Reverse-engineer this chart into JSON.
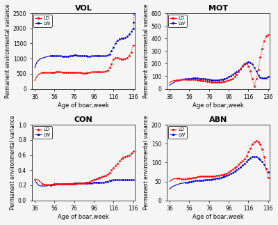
{
  "subplots": [
    {
      "title": "VOL",
      "ylabel": "Permanent environmental variance",
      "xlabel": "Age of boar,week",
      "xlim": [
        33,
        138
      ],
      "ylim": [
        0,
        2500
      ],
      "yticks": [
        0,
        500,
        1000,
        1500,
        2000,
        2500
      ],
      "xticks": [
        36,
        56,
        76,
        96,
        116,
        136
      ],
      "LD_x": [
        36,
        38,
        40,
        42,
        44,
        46,
        48,
        50,
        52,
        54,
        56,
        58,
        60,
        62,
        64,
        66,
        68,
        70,
        72,
        74,
        76,
        78,
        80,
        82,
        84,
        86,
        88,
        90,
        92,
        94,
        96,
        98,
        100,
        102,
        104,
        106,
        108,
        110,
        112,
        114,
        116,
        118,
        120,
        122,
        124,
        126,
        128,
        130,
        132,
        134,
        136
      ],
      "LD_y": [
        280,
        400,
        480,
        520,
        540,
        545,
        540,
        535,
        540,
        545,
        550,
        555,
        558,
        555,
        550,
        545,
        540,
        538,
        540,
        542,
        540,
        538,
        535,
        533,
        530,
        528,
        530,
        535,
        545,
        555,
        560,
        565,
        560,
        555,
        558,
        565,
        580,
        620,
        700,
        820,
        970,
        1020,
        1030,
        1000,
        970,
        980,
        1000,
        1020,
        1100,
        1200,
        1450
      ],
      "LW_x": [
        36,
        38,
        40,
        42,
        44,
        46,
        48,
        50,
        52,
        54,
        56,
        58,
        60,
        62,
        64,
        66,
        68,
        70,
        72,
        74,
        76,
        78,
        80,
        82,
        84,
        86,
        88,
        90,
        92,
        94,
        96,
        98,
        100,
        102,
        104,
        106,
        108,
        110,
        112,
        114,
        116,
        118,
        120,
        122,
        124,
        126,
        128,
        130,
        132,
        134,
        136,
        136.5,
        137
      ],
      "LW_y": [
        700,
        870,
        950,
        1000,
        1020,
        1040,
        1060,
        1080,
        1090,
        1100,
        1100,
        1095,
        1090,
        1085,
        1082,
        1080,
        1080,
        1082,
        1090,
        1100,
        1110,
        1110,
        1105,
        1100,
        1095,
        1090,
        1085,
        1082,
        1080,
        1085,
        1090,
        1100,
        1105,
        1100,
        1095,
        1090,
        1095,
        1110,
        1150,
        1250,
        1380,
        1500,
        1600,
        1650,
        1680,
        1680,
        1700,
        1750,
        1800,
        1900,
        2000,
        2200,
        2500
      ],
      "LD_dotted_start": 44,
      "LW_dotted_start": 51
    },
    {
      "title": "MOT",
      "ylabel": "Permanent environmental variance",
      "xlabel": "Age of boar,week",
      "xlim": [
        33,
        138
      ],
      "ylim": [
        0,
        600
      ],
      "yticks": [
        0,
        100,
        200,
        300,
        400,
        500,
        600
      ],
      "xticks": [
        36,
        56,
        76,
        96,
        116,
        136
      ],
      "LD_x": [
        36,
        38,
        40,
        42,
        44,
        46,
        48,
        50,
        52,
        54,
        56,
        58,
        60,
        62,
        64,
        66,
        68,
        70,
        72,
        74,
        76,
        78,
        80,
        82,
        84,
        86,
        88,
        90,
        92,
        94,
        96,
        98,
        100,
        102,
        104,
        106,
        108,
        110,
        112,
        114,
        116,
        118,
        120,
        122,
        124,
        126,
        128,
        130,
        132,
        134,
        136
      ],
      "LD_y": [
        50,
        60,
        65,
        68,
        70,
        72,
        73,
        74,
        75,
        76,
        77,
        76,
        75,
        73,
        70,
        68,
        65,
        63,
        62,
        60,
        58,
        55,
        52,
        50,
        50,
        52,
        55,
        58,
        60,
        63,
        67,
        75,
        82,
        95,
        115,
        135,
        160,
        185,
        200,
        200,
        180,
        140,
        80,
        20,
        80,
        150,
        250,
        320,
        380,
        420,
        430
      ],
      "LW_x": [
        36,
        38,
        40,
        42,
        44,
        46,
        48,
        50,
        52,
        54,
        56,
        58,
        60,
        62,
        64,
        66,
        68,
        70,
        72,
        74,
        76,
        78,
        80,
        82,
        84,
        86,
        88,
        90,
        92,
        94,
        96,
        98,
        100,
        102,
        104,
        106,
        108,
        110,
        112,
        114,
        116,
        118,
        120,
        122,
        124,
        126,
        128,
        130,
        132,
        134,
        136
      ],
      "LW_y": [
        30,
        40,
        50,
        58,
        63,
        68,
        72,
        75,
        78,
        80,
        82,
        83,
        85,
        85,
        84,
        83,
        82,
        80,
        78,
        76,
        74,
        72,
        70,
        68,
        68,
        70,
        73,
        77,
        82,
        88,
        95,
        105,
        115,
        125,
        135,
        145,
        160,
        178,
        195,
        205,
        215,
        210,
        195,
        170,
        140,
        110,
        90,
        85,
        85,
        88,
        95
      ],
      "LD_dotted_start": 44,
      "LW_dotted_start": 51
    },
    {
      "title": "CON",
      "ylabel": "Permanent environmental variance",
      "xlabel": "Age of boar,week",
      "xlim": [
        33,
        138
      ],
      "ylim": [
        0,
        1.0
      ],
      "yticks": [
        0.0,
        0.2,
        0.4,
        0.6,
        0.8,
        1.0
      ],
      "xticks": [
        36,
        56,
        76,
        96,
        116,
        136
      ],
      "LD_x": [
        36,
        38,
        40,
        42,
        44,
        46,
        48,
        50,
        52,
        54,
        56,
        58,
        60,
        62,
        64,
        66,
        68,
        70,
        72,
        74,
        76,
        78,
        80,
        82,
        84,
        86,
        88,
        90,
        92,
        94,
        96,
        98,
        100,
        102,
        104,
        106,
        108,
        110,
        112,
        114,
        116,
        118,
        120,
        122,
        124,
        126,
        128,
        130,
        132,
        134,
        136
      ],
      "LD_y": [
        0.28,
        0.28,
        0.26,
        0.24,
        0.22,
        0.21,
        0.21,
        0.21,
        0.21,
        0.21,
        0.21,
        0.22,
        0.22,
        0.22,
        0.22,
        0.22,
        0.22,
        0.22,
        0.22,
        0.22,
        0.22,
        0.22,
        0.23,
        0.23,
        0.23,
        0.23,
        0.24,
        0.24,
        0.25,
        0.26,
        0.27,
        0.28,
        0.29,
        0.3,
        0.31,
        0.32,
        0.33,
        0.35,
        0.37,
        0.4,
        0.43,
        0.46,
        0.49,
        0.52,
        0.55,
        0.57,
        0.58,
        0.59,
        0.6,
        0.62,
        0.65
      ],
      "LW_x": [
        36,
        38,
        40,
        42,
        44,
        46,
        48,
        50,
        52,
        54,
        56,
        58,
        60,
        62,
        64,
        66,
        68,
        70,
        72,
        74,
        76,
        78,
        80,
        82,
        84,
        86,
        88,
        90,
        92,
        94,
        96,
        98,
        100,
        102,
        104,
        106,
        108,
        110,
        112,
        114,
        116,
        118,
        120,
        122,
        124,
        126,
        128,
        130,
        132,
        134,
        136
      ],
      "LW_y": [
        0.27,
        0.23,
        0.2,
        0.19,
        0.19,
        0.19,
        0.19,
        0.2,
        0.2,
        0.21,
        0.22,
        0.22,
        0.22,
        0.22,
        0.22,
        0.22,
        0.22,
        0.22,
        0.22,
        0.22,
        0.23,
        0.23,
        0.23,
        0.23,
        0.23,
        0.23,
        0.23,
        0.23,
        0.23,
        0.23,
        0.24,
        0.24,
        0.24,
        0.24,
        0.24,
        0.24,
        0.25,
        0.25,
        0.26,
        0.26,
        0.27,
        0.27,
        0.27,
        0.27,
        0.27,
        0.27,
        0.27,
        0.27,
        0.27,
        0.27,
        0.27
      ],
      "LD_dotted_start": 44,
      "LW_dotted_start": 51
    },
    {
      "title": "ABN",
      "ylabel": "Permanent environmental variance",
      "xlabel": "Age of boar,week",
      "xlim": [
        33,
        138
      ],
      "ylim": [
        0,
        200
      ],
      "yticks": [
        0,
        50,
        100,
        150,
        200
      ],
      "xticks": [
        36,
        56,
        76,
        96,
        116,
        136
      ],
      "LD_x": [
        36,
        38,
        40,
        42,
        44,
        46,
        48,
        50,
        52,
        54,
        56,
        58,
        60,
        62,
        64,
        66,
        68,
        70,
        72,
        74,
        76,
        78,
        80,
        82,
        84,
        86,
        88,
        90,
        92,
        94,
        96,
        98,
        100,
        102,
        104,
        106,
        108,
        110,
        112,
        114,
        116,
        118,
        120,
        122,
        124,
        126,
        128,
        130,
        132,
        134,
        136
      ],
      "LD_y": [
        50,
        55,
        57,
        58,
        58,
        58,
        57,
        57,
        57,
        58,
        58,
        59,
        60,
        61,
        62,
        63,
        63,
        63,
        63,
        63,
        63,
        63,
        63,
        64,
        65,
        66,
        67,
        68,
        70,
        72,
        75,
        78,
        82,
        86,
        90,
        95,
        100,
        105,
        110,
        118,
        128,
        138,
        148,
        155,
        158,
        155,
        148,
        135,
        115,
        85,
        60
      ],
      "LW_x": [
        36,
        38,
        40,
        42,
        44,
        46,
        48,
        50,
        52,
        54,
        56,
        58,
        60,
        62,
        64,
        66,
        68,
        70,
        72,
        74,
        76,
        78,
        80,
        82,
        84,
        86,
        88,
        90,
        92,
        94,
        96,
        98,
        100,
        102,
        104,
        106,
        108,
        110,
        112,
        114,
        116,
        118,
        120,
        122,
        124,
        126,
        128,
        130,
        132,
        134,
        136
      ],
      "LW_y": [
        30,
        35,
        38,
        40,
        42,
        44,
        45,
        46,
        47,
        48,
        49,
        50,
        51,
        52,
        52,
        53,
        53,
        53,
        54,
        54,
        55,
        55,
        56,
        57,
        58,
        59,
        60,
        62,
        64,
        66,
        68,
        71,
        74,
        77,
        80,
        84,
        88,
        93,
        98,
        103,
        108,
        112,
        115,
        116,
        115,
        112,
        108,
        102,
        95,
        85,
        75
      ],
      "LD_dotted_start": 44,
      "LW_dotted_start": 51
    }
  ],
  "red_color": "#FF0000",
  "blue_color": "#0000CD",
  "legend_labels": [
    "LD",
    "LW"
  ],
  "bg_color": "#F5F5F5"
}
